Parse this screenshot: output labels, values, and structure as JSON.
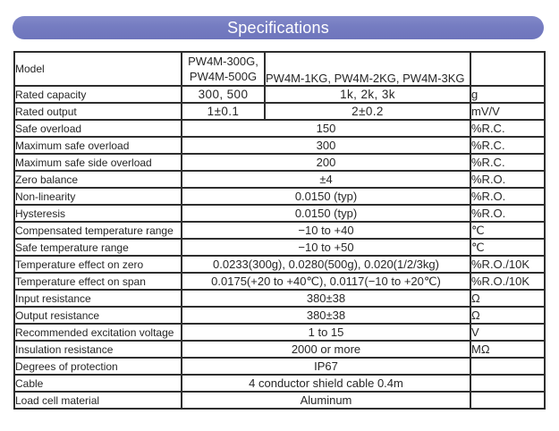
{
  "header": {
    "title": "Specifications"
  },
  "colors": {
    "banner": "#757CC1",
    "banner_text": "#FFFFFF",
    "table_border": "#2E2E2E",
    "text": "#262626"
  },
  "table": {
    "model_row": {
      "label": "Model",
      "group_a_line1": "PW4M-300G,",
      "group_a_line2": "PW4M-500G",
      "group_b": "PW4M-1KG, PW4M-2KG, PW4M-3KG",
      "unit": ""
    },
    "split_rows": [
      {
        "label": "Rated capacity",
        "value_a": "300, 500",
        "value_b": "1k, 2k, 3k",
        "unit": "g"
      },
      {
        "label": "Rated output",
        "value_a": "1±0.1",
        "value_b": "2±0.2",
        "unit": "mV/V"
      }
    ],
    "rows": [
      {
        "label": "Safe overload",
        "value": "150",
        "unit": "%R.C."
      },
      {
        "label": "Maximum safe overload",
        "value": "300",
        "unit": "%R.C."
      },
      {
        "label": "Maximum safe side overload",
        "value": "200",
        "unit": "%R.C."
      },
      {
        "label": "Zero balance",
        "value": "±4",
        "unit": "%R.O."
      },
      {
        "label": "Non-linearity",
        "value": "0.0150 (typ)",
        "unit": "%R.O."
      },
      {
        "label": "Hysteresis",
        "value": "0.0150 (typ)",
        "unit": "%R.O."
      },
      {
        "label": "Compensated temperature range",
        "value": "−10 to +40",
        "unit": "℃"
      },
      {
        "label": "Safe temperature range",
        "value": "−10 to +50",
        "unit": "℃"
      },
      {
        "label": "Temperature effect on zero",
        "value": "0.0233(300g), 0.0280(500g), 0.020(1/2/3kg)",
        "unit": "%R.O./10K"
      },
      {
        "label": "Temperature effect on span",
        "value": "0.0175(+20 to +40℃), 0.0117(−10 to +20℃)",
        "unit": "%R.O./10K"
      },
      {
        "label": "Input resistance",
        "value": "380±38",
        "unit": "Ω"
      },
      {
        "label": "Output resistance",
        "value": "380±38",
        "unit": "Ω"
      },
      {
        "label": "Recommended excitation voltage",
        "value": "1 to 15",
        "unit": "V"
      },
      {
        "label": "Insulation resistance",
        "value": "2000 or more",
        "unit": "MΩ"
      },
      {
        "label": "Degrees of protection",
        "value": "IP67",
        "unit": ""
      },
      {
        "label": "Cable",
        "value": "4 conductor shield cable 0.4m",
        "unit": ""
      },
      {
        "label": "Load cell material",
        "value": "Aluminum",
        "unit": ""
      }
    ]
  }
}
